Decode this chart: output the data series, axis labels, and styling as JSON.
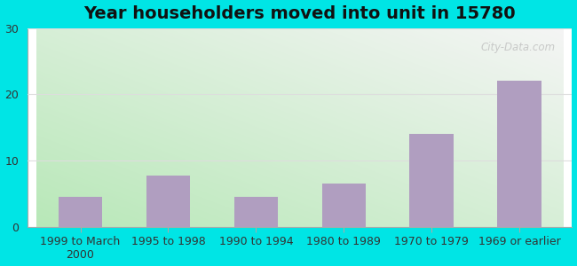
{
  "title": "Year householders moved into unit in 15780",
  "categories": [
    "1999 to March\n2000",
    "1995 to 1998",
    "1990 to 1994",
    "1980 to 1989",
    "1970 to 1979",
    "1969 or earlier"
  ],
  "values": [
    4.5,
    7.8,
    4.5,
    6.5,
    14.0,
    22.0
  ],
  "bar_color": "#b09ec0",
  "ylim": [
    0,
    30
  ],
  "yticks": [
    0,
    10,
    20,
    30
  ],
  "background_outer": "#00e5e5",
  "grad_color_top_right": "#f5f5f5",
  "grad_color_bottom_left": "#b8e8b8",
  "grid_color": "#dddddd",
  "title_fontsize": 14,
  "tick_fontsize": 9,
  "watermark": "City-Data.com"
}
